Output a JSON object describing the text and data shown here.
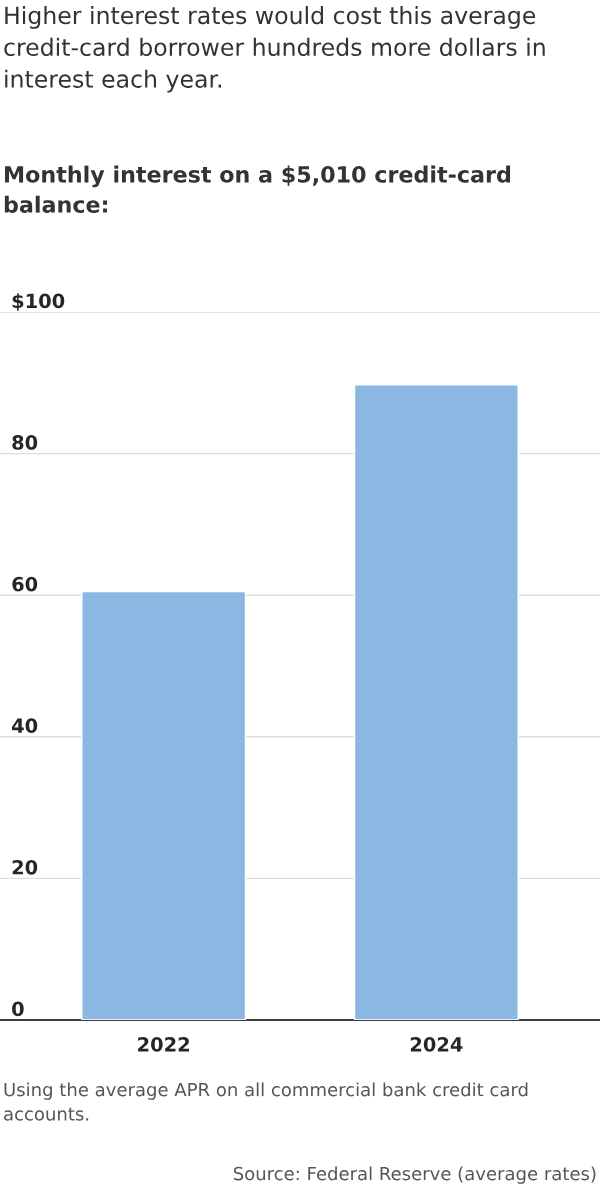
{
  "chart_data": {
    "type": "bar",
    "title": "Higher interest rates would cost this average credit-card borrower hundreds more dollars in interest each year.",
    "subtitle": "Monthly interest on a $5,010 credit-card balance:",
    "categories": [
      "2022",
      "2024"
    ],
    "values": [
      60.5,
      89.7
    ],
    "color": "#8ab8e2",
    "ylim": [
      0,
      100
    ],
    "yticks": [
      0,
      20,
      40,
      60,
      80,
      {
        "value": 100,
        "label": "$100"
      }
    ],
    "grid": "y",
    "annotations": [
      "Using the average APR on all commercial bank credit card accounts.",
      "Source: Federal Reserve (average rates)"
    ]
  }
}
